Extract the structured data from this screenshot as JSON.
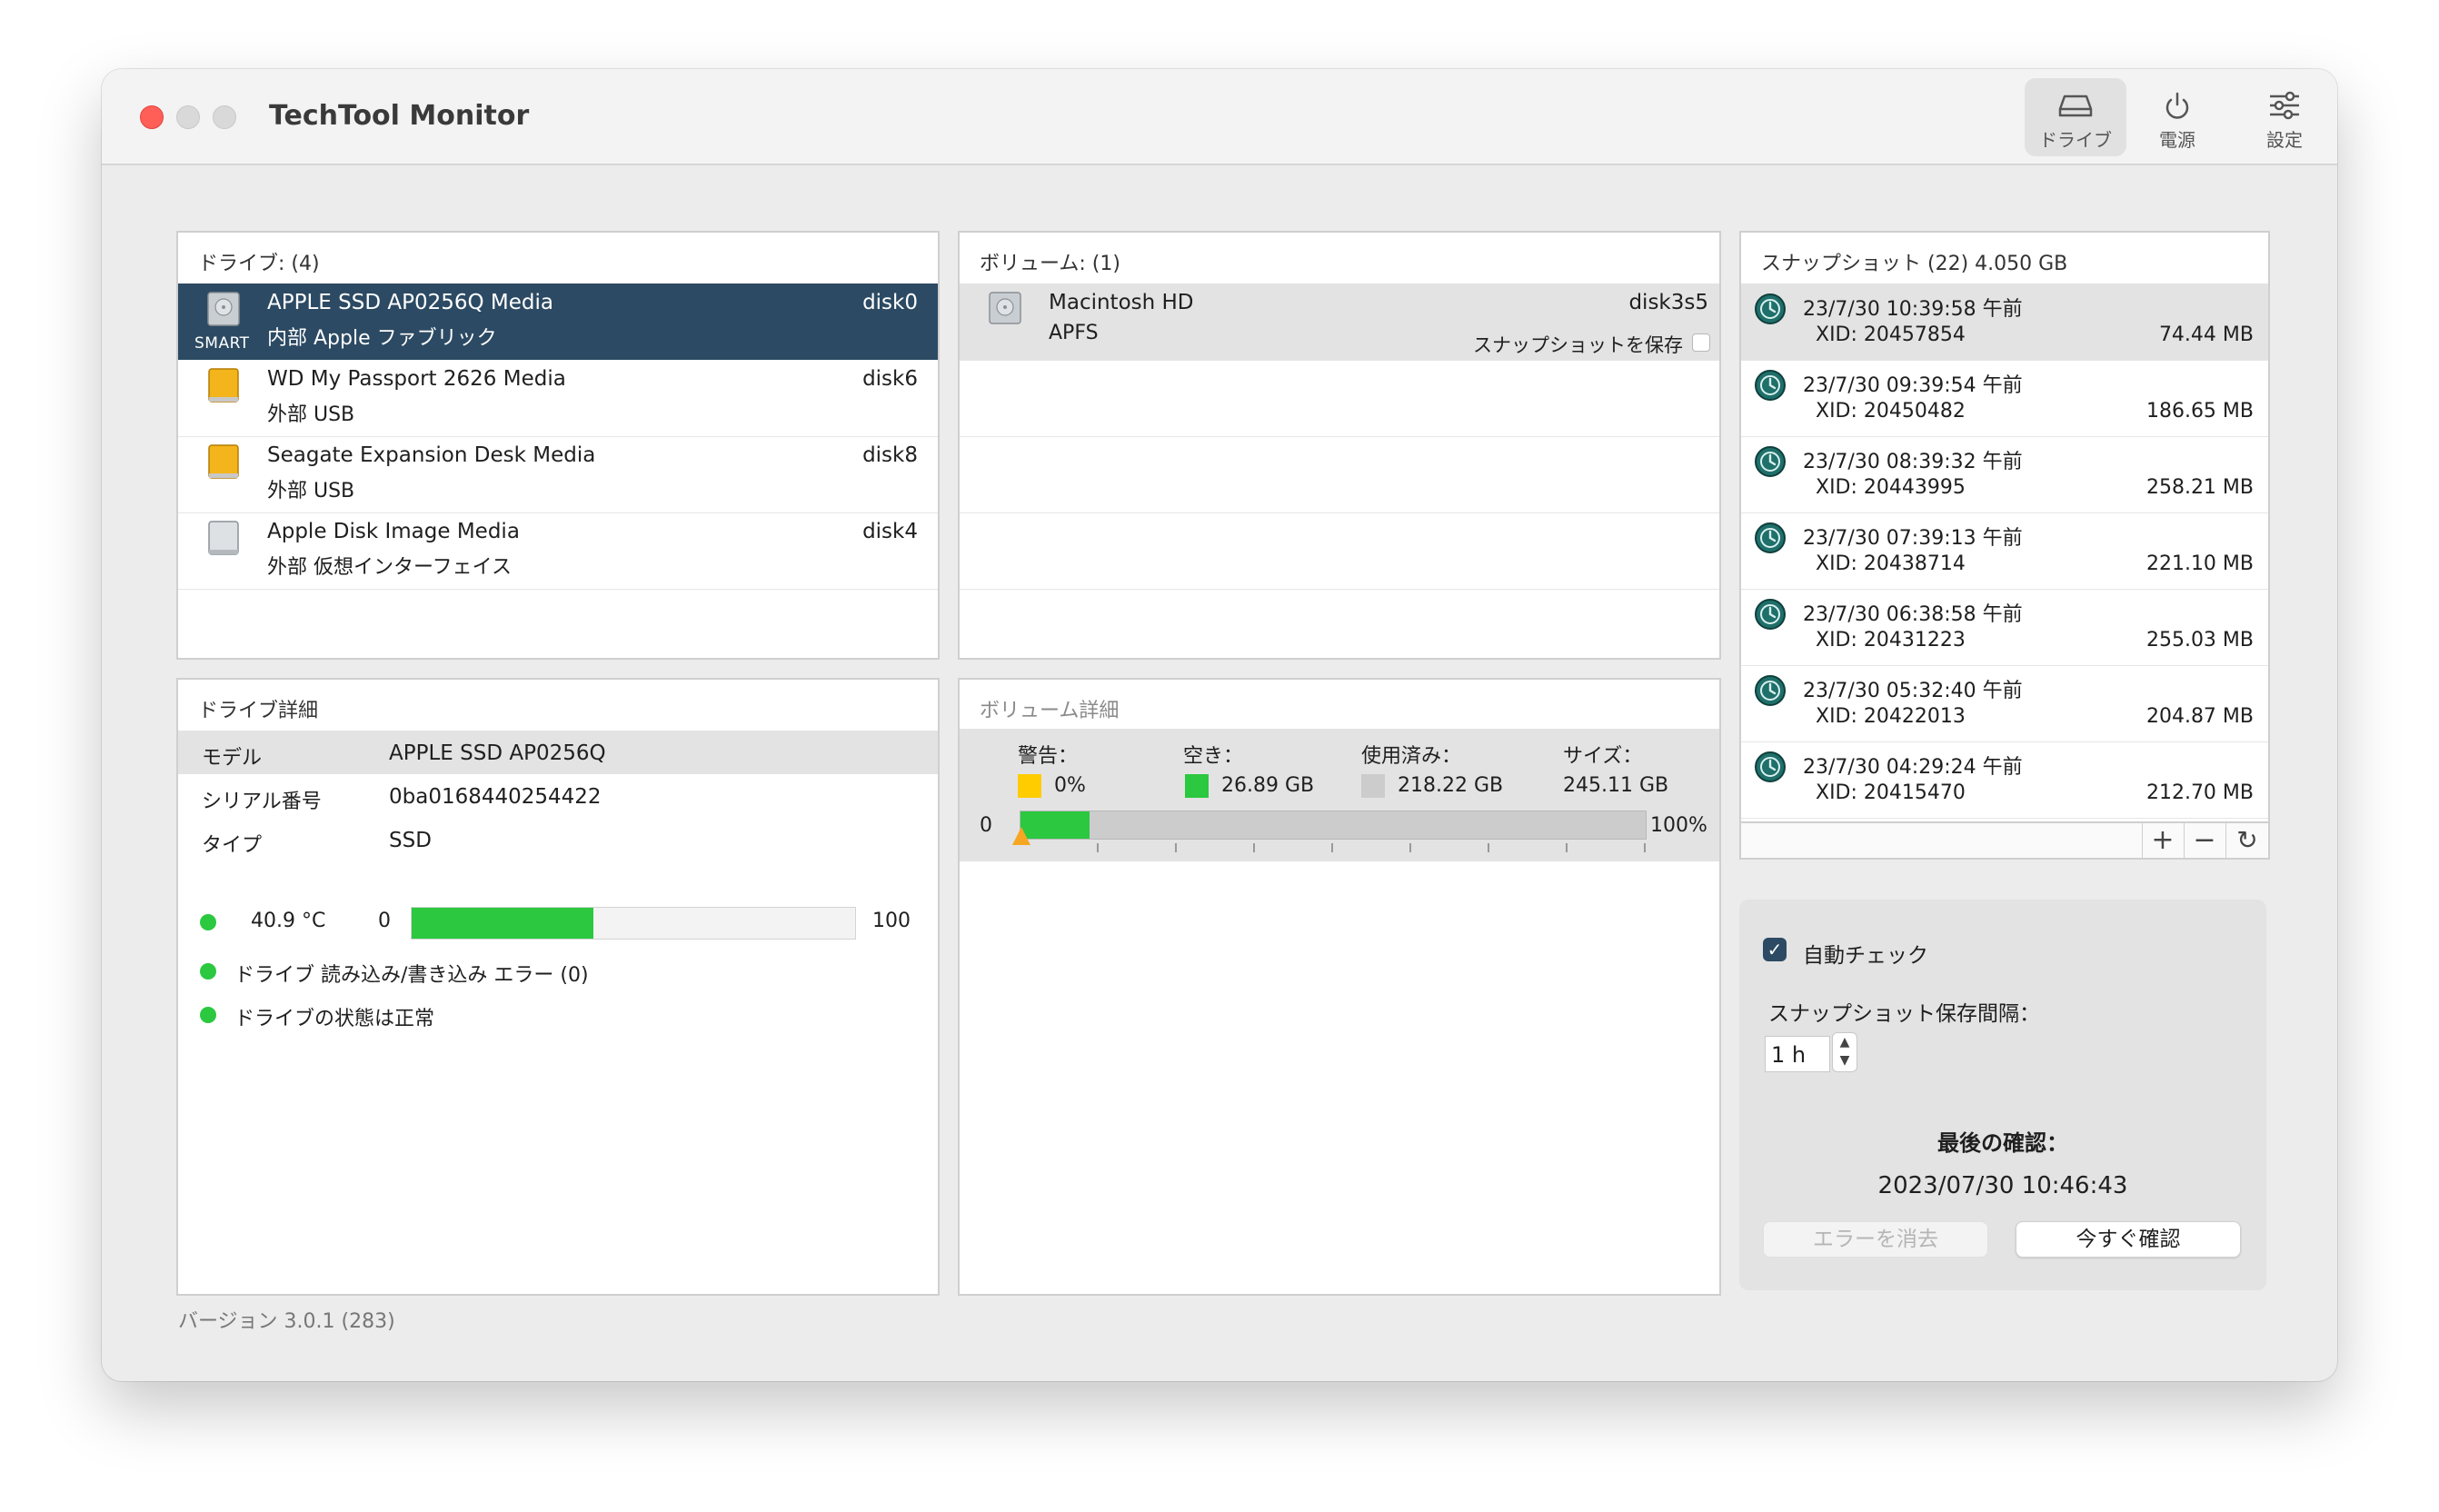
{
  "app": {
    "title": "TechTool Monitor",
    "version": "バージョン 3.0.1 (283)"
  },
  "toolbar": {
    "drives": "ドライブ",
    "power": "電源",
    "settings": "設定"
  },
  "drives": {
    "header": "ドライブ: (4)",
    "smart": "SMART",
    "items": [
      {
        "name": "APPLE SSD AP0256Q Media",
        "sub": "内部 Apple ファブリック",
        "id": "disk0"
      },
      {
        "name": "WD My Passport 2626 Media",
        "sub": "外部 USB",
        "id": "disk6"
      },
      {
        "name": "Seagate Expansion Desk Media",
        "sub": "外部 USB",
        "id": "disk8"
      },
      {
        "name": "Apple Disk Image Media",
        "sub": "外部 仮想インターフェイス",
        "id": "disk4"
      }
    ]
  },
  "volumes": {
    "header": "ボリューム: (1)",
    "items": [
      {
        "name": "Macintosh HD",
        "fs": "APFS",
        "id": "disk3s5",
        "snapshot_label": "スナップショットを保存"
      }
    ]
  },
  "snapshots": {
    "header": "スナップショット (22) 4.050 GB",
    "items": [
      {
        "date": "23/7/30 10:39:58 午前",
        "xid": "XID:  20457854",
        "size": "74.44 MB"
      },
      {
        "date": "23/7/30 09:39:54 午前",
        "xid": "XID:  20450482",
        "size": "186.65 MB"
      },
      {
        "date": "23/7/30 08:39:32 午前",
        "xid": "XID:  20443995",
        "size": "258.21 MB"
      },
      {
        "date": "23/7/30 07:39:13 午前",
        "xid": "XID:  20438714",
        "size": "221.10 MB"
      },
      {
        "date": "23/7/30 06:38:58 午前",
        "xid": "XID:  20431223",
        "size": "255.03 MB"
      },
      {
        "date": "23/7/30 05:32:40 午前",
        "xid": "XID:  20422013",
        "size": "204.87 MB"
      },
      {
        "date": "23/7/30 04:29:24 午前",
        "xid": "XID:  20415470",
        "size": "212.70 MB"
      }
    ]
  },
  "drive_details": {
    "header": "ドライブ詳細",
    "rows": [
      {
        "key": "モデル",
        "value": "APPLE SSD AP0256Q"
      },
      {
        "key": "シリアル番号",
        "value": "0ba0168440254422"
      },
      {
        "key": "タイプ",
        "value": "SSD"
      }
    ],
    "temperature": "40.9 °C",
    "temp_min": "0",
    "temp_max": "100",
    "temp_fraction": 0.409,
    "io_errors": "ドライブ 読み込み/書き込み エラー (0)",
    "health": "ドライブの状態は正常"
  },
  "volume_details": {
    "header": "ボリューム詳細",
    "warning_label": "警告：",
    "warning_value": "0%",
    "free_label": "空き：",
    "free_value": "26.89 GB",
    "used_label": "使用済み：",
    "used_value": "218.22 GB",
    "size_label": "サイズ：",
    "size_value": "245.11 GB",
    "bar_min": "0",
    "bar_max": "100%",
    "free_fraction": 0.11
  },
  "settings": {
    "auto_check": "自動チェック",
    "auto_check_on": true,
    "interval_label": "スナップショット保存間隔：",
    "interval_value": "1 h",
    "last_check_label": "最後の確認：",
    "last_check_value": "2023/07/30 10:46:43",
    "clear_errors": "エラーを消去",
    "check_now": "今すぐ確認"
  },
  "colors": {
    "selection": "#2c4a63",
    "ok": "#2bc840",
    "warning": "#ffcc00",
    "used": "#cccccc"
  }
}
